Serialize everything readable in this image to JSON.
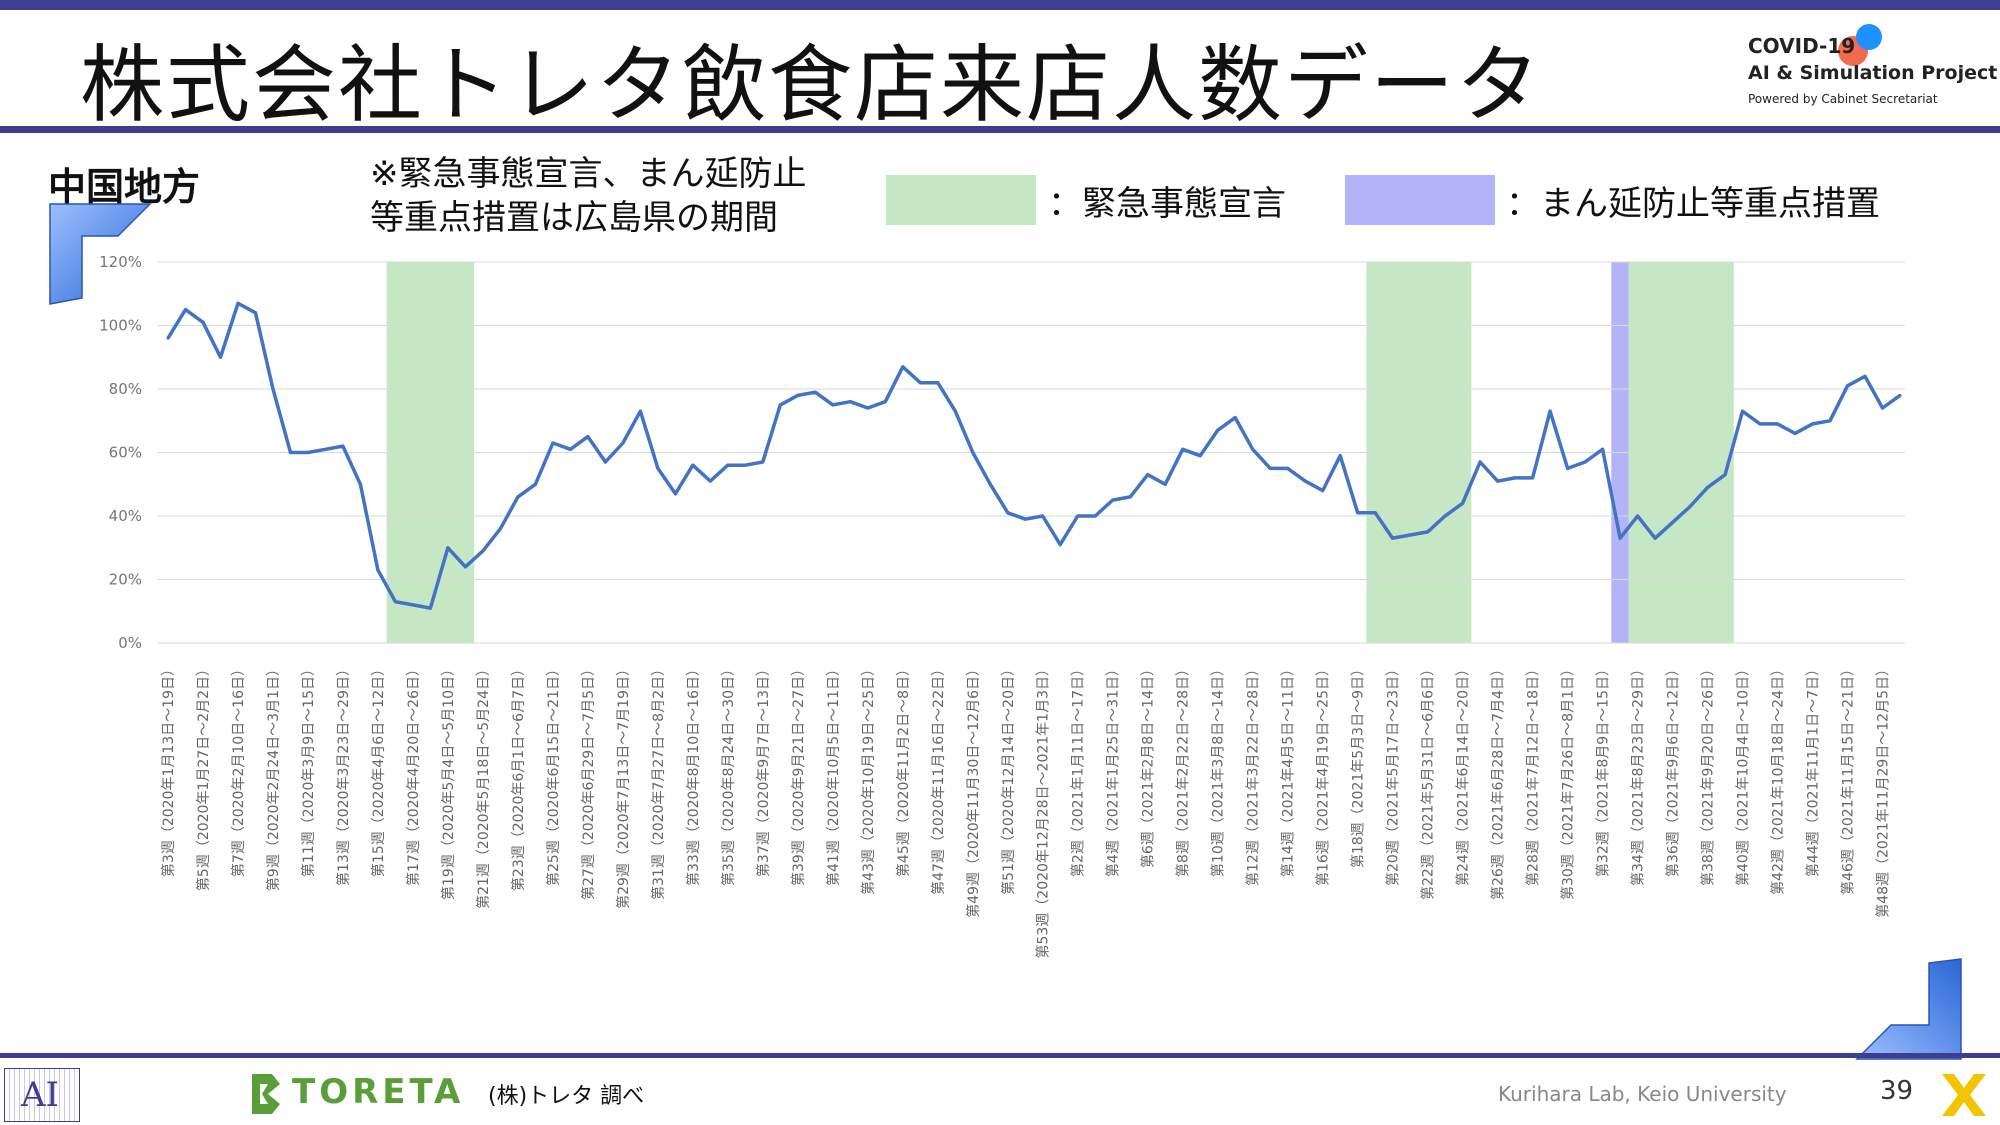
{
  "header": {
    "title": "株式会社トレタ飲食店来店人数データ",
    "covid_line1": "COVID-19",
    "covid_line2": "AI & Simulation Project",
    "covid_line3": "Powered by Cabinet Secretariat"
  },
  "region": "中国地方",
  "note_line1": "※緊急事態宣言、まん延防止",
  "note_line2": "等重点措置は広島県の期間",
  "legend": {
    "emergency_label": "：緊急事態宣言",
    "emergency_color": "#c6e7c4",
    "prevention_label": "：まん延防止等重点措置",
    "prevention_color": "#b3b3f8"
  },
  "footer": {
    "ai_logo": "AI",
    "toreta": "TORETA",
    "source": "(株)トレタ 調べ",
    "lab": "Kurihara Lab, Keio University",
    "page": "39"
  },
  "chart_data": {
    "type": "line",
    "line_color": "#4472c4",
    "ylim": [
      0,
      1.2
    ],
    "yticks": [
      "0%",
      "20%",
      "40%",
      "60%",
      "80%",
      "100%",
      "120%"
    ],
    "grid": true,
    "x_labels": [
      "第3週（2020年1月13日～19日）",
      "第5週（2020年1月27日～2月2日）",
      "第7週（2020年2月10日～16日）",
      "第9週（2020年2月24日～3月1日）",
      "第11週（2020年3月9日～15日）",
      "第13週（2020年3月23日～29日）",
      "第15週（2020年4月6日～12日）",
      "第17週（2020年4月20日～26日）",
      "第19週（2020年5月4日～5月10日）",
      "第21週（2020年5月18日～5月24日）",
      "第23週（2020年6月1日～6月7日）",
      "第25週（2020年6月15日～21日）",
      "第27週（2020年6月29日～7月5日）",
      "第29週（2020年7月13日～7月19日）",
      "第31週（2020年7月27日～8月2日）",
      "第33週（2020年8月10日～16日）",
      "第35週（2020年8月24日～30日）",
      "第37週（2020年9月7日～13日）",
      "第39週（2020年9月21日～27日）",
      "第41週（2020年10月5日～11日）",
      "第43週（2020年10月19日～25日）",
      "第45週（2020年11月2日～8日）",
      "第47週（2020年11月16日～22日）",
      "第49週（2020年11月30日～12月6日）",
      "第51週（2020年12月14日～20日）",
      "第53週（2020年12月28日～2021年1月3日）",
      "第2週（2021年1月11日～17日）",
      "第4週（2021年1月25日～31日）",
      "第6週（2021年2月8日～14日）",
      "第8週（2021年2月22日～28日）",
      "第10週（2021年3月8日～14日）",
      "第12週（2021年3月22日～28日）",
      "第14週（2021年4月5日～11日）",
      "第16週（2021年4月19日～25日）",
      "第18週（2021年5月3日～9日）",
      "第20週（2021年5月17日～23日）",
      "第22週（2021年5月31日～6月6日）",
      "第24週（2021年6月14日～20日）",
      "第26週（2021年6月28日～7月4日）",
      "第28週（2021年7月12日～18日）",
      "第30週（2021年7月26日～8月1日）",
      "第32週（2021年8月9日～15日）",
      "第34週（2021年8月23日～29日）",
      "第36週（2021年9月6日～12日）",
      "第38週（2021年9月20日～26日）",
      "第40週（2021年10月4日～10日）",
      "第42週（2021年10月18日～24日）",
      "第44週（2021年11月1日～7日）",
      "第46週（2021年11月15日～21日）",
      "第48週（2021年11月29日～12月5日）"
    ],
    "values": [
      0.96,
      1.05,
      1.01,
      0.9,
      1.07,
      1.04,
      0.8,
      0.6,
      0.6,
      0.61,
      0.62,
      0.5,
      0.23,
      0.13,
      0.12,
      0.11,
      0.3,
      0.24,
      0.29,
      0.36,
      0.46,
      0.5,
      0.63,
      0.61,
      0.65,
      0.57,
      0.63,
      0.73,
      0.55,
      0.47,
      0.56,
      0.51,
      0.56,
      0.56,
      0.57,
      0.75,
      0.78,
      0.79,
      0.75,
      0.76,
      0.74,
      0.76,
      0.87,
      0.82,
      0.82,
      0.73,
      0.6,
      0.5,
      0.41,
      0.39,
      0.4,
      0.31,
      0.4,
      0.4,
      0.45,
      0.46,
      0.53,
      0.5,
      0.61,
      0.59,
      0.67,
      0.71,
      0.61,
      0.55,
      0.55,
      0.51,
      0.48,
      0.59,
      0.41,
      0.41,
      0.33,
      0.34,
      0.35,
      0.4,
      0.44,
      0.57,
      0.51,
      0.52,
      0.52,
      0.73,
      0.55,
      0.57,
      0.61,
      0.33,
      0.4,
      0.33,
      0.38,
      0.43,
      0.49,
      0.53,
      0.73,
      0.69,
      0.69,
      0.66,
      0.69,
      0.7,
      0.81,
      0.84,
      0.74,
      0.78
    ],
    "shaded_periods": [
      {
        "kind": "emergency",
        "start_index": 12.5,
        "end_index": 17.5
      },
      {
        "kind": "prevention",
        "start_index": 82.5,
        "end_index": 83.5
      },
      {
        "kind": "emergency",
        "start_index": 68.5,
        "end_index": 74.5
      },
      {
        "kind": "emergency",
        "start_index": 83.5,
        "end_index": 89.5
      }
    ]
  }
}
